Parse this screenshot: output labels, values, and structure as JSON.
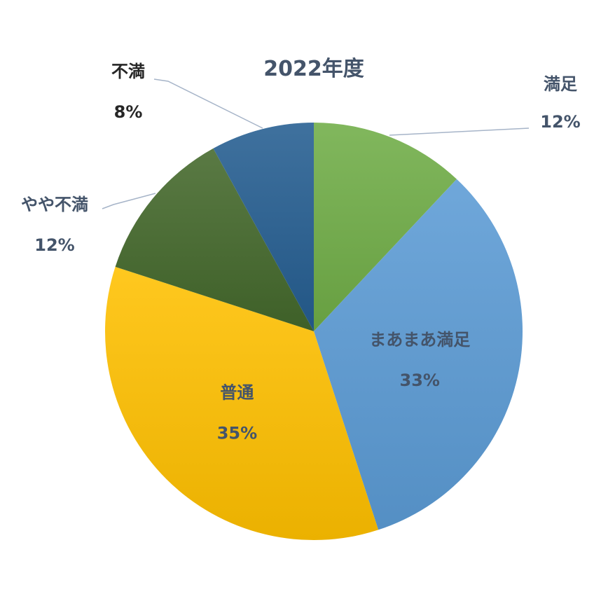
{
  "chart_data": {
    "type": "pie",
    "title": "2022年度",
    "start_angle_deg": 0,
    "direction": "clockwise",
    "slices": [
      {
        "label": "満足",
        "value": 12,
        "value_label": "12%",
        "color": "#70ad47",
        "label_color": "#44546a",
        "label_position": "outside-top-right",
        "leader_line": true
      },
      {
        "label": "まあまあ満足",
        "value": 33,
        "value_label": "33%",
        "color": "#5b9bd5",
        "label_color": "#44546a",
        "label_position": "inside",
        "leader_line": false
      },
      {
        "label": "普通",
        "value": 35,
        "value_label": "35%",
        "color": "#ffc000",
        "label_color": "#44546a",
        "label_position": "inside",
        "leader_line": false
      },
      {
        "label": "やや不満",
        "value": 12,
        "value_label": "12%",
        "color": "#43682b",
        "label_color": "#44546a",
        "label_position": "outside-left",
        "leader_line": true
      },
      {
        "label": "不満",
        "value": 8,
        "value_label": "8%",
        "color": "#255e91",
        "label_color": "#262626",
        "label_position": "outside-top-left",
        "leader_line": true
      }
    ]
  }
}
